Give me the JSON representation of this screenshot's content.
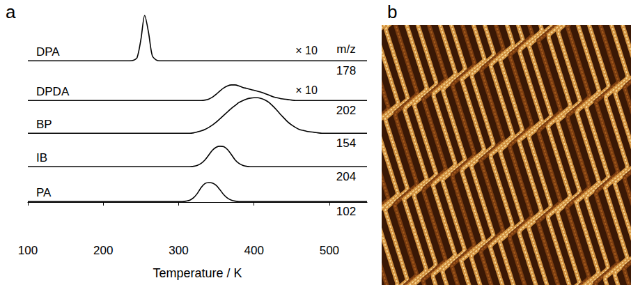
{
  "chart_data": {
    "type": "line",
    "panel_letter": "a",
    "xlabel": "Temperature / K",
    "column_title": "m/z",
    "xlim": [
      100,
      550
    ],
    "xticks": [
      100,
      200,
      300,
      400,
      500
    ],
    "ylim": [
      0,
      1
    ],
    "tick_labels": "x",
    "grid": false,
    "x": [
      100,
      105,
      110,
      115,
      120,
      125,
      130,
      135,
      140,
      145,
      150,
      155,
      160,
      165,
      170,
      175,
      180,
      185,
      190,
      195,
      200,
      205,
      210,
      215,
      220,
      225,
      230,
      235,
      240,
      245,
      250,
      255,
      260,
      265,
      270,
      275,
      280,
      285,
      290,
      295,
      300,
      305,
      310,
      315,
      320,
      325,
      330,
      335,
      340,
      345,
      350,
      355,
      360,
      365,
      370,
      375,
      380,
      385,
      390,
      395,
      400,
      405,
      410,
      415,
      420,
      425,
      430,
      435,
      440,
      445,
      450,
      455,
      460,
      465,
      470,
      475,
      480,
      485,
      490,
      495,
      500,
      505,
      510,
      515,
      520,
      525,
      530,
      535,
      540,
      545,
      550
    ],
    "series": [
      {
        "name": "DPA",
        "color": "#000000",
        "mz": 178,
        "scale_label": "× 10",
        "values": [
          0.01,
          0.01,
          0.01,
          0.01,
          0.01,
          0.01,
          0.01,
          0.01,
          0.01,
          0.01,
          0.01,
          0.01,
          0.01,
          0.01,
          0.01,
          0.01,
          0.01,
          0.01,
          0.01,
          0.01,
          0.01,
          0.01,
          0.01,
          0.01,
          0.01,
          0.01,
          0.01,
          0.01,
          0.02,
          0.08,
          0.45,
          0.94,
          0.6,
          0.12,
          0.03,
          0.01,
          0.01,
          0.01,
          0.01,
          0.01,
          0.01,
          0.01,
          0.01,
          0.01,
          0.01,
          0.01,
          0.01,
          0.01,
          0.01,
          0.01,
          0.01,
          0.01,
          0.01,
          0.01,
          0.01,
          0.01,
          0.01,
          0.01,
          0.01,
          0.01,
          0.01,
          0.01,
          0.01,
          0.01,
          0.01,
          0.01,
          0.01,
          0.01,
          0.01,
          0.01,
          0.01,
          0.01,
          0.01,
          0.01,
          0.01,
          0.01,
          0.01,
          0.01,
          0.01,
          0.01,
          0.01,
          0.01,
          0.01,
          0.01,
          0.01,
          0.01,
          0.01,
          0.01,
          0.01,
          0.01,
          0.01
        ]
      },
      {
        "name": "DPDA",
        "color": "#000000",
        "mz": 202,
        "scale_label": "× 10",
        "values": [
          0.01,
          0.01,
          0.01,
          0.01,
          0.01,
          0.01,
          0.01,
          0.01,
          0.01,
          0.01,
          0.01,
          0.01,
          0.01,
          0.01,
          0.01,
          0.01,
          0.01,
          0.01,
          0.01,
          0.01,
          0.01,
          0.01,
          0.01,
          0.01,
          0.01,
          0.01,
          0.01,
          0.01,
          0.01,
          0.01,
          0.01,
          0.01,
          0.01,
          0.01,
          0.01,
          0.01,
          0.01,
          0.01,
          0.01,
          0.01,
          0.01,
          0.01,
          0.01,
          0.01,
          0.01,
          0.01,
          0.01,
          0.02,
          0.04,
          0.08,
          0.14,
          0.21,
          0.27,
          0.31,
          0.33,
          0.33,
          0.31,
          0.28,
          0.26,
          0.24,
          0.22,
          0.2,
          0.18,
          0.15,
          0.12,
          0.09,
          0.07,
          0.05,
          0.04,
          0.03,
          0.02,
          0.01,
          0.01,
          0.01,
          0.01,
          0.01,
          0.01,
          0.01,
          0.01,
          0.01,
          0.01,
          0.01,
          0.01,
          0.01,
          0.01,
          0.01,
          0.01,
          0.01,
          0.01,
          0.01,
          0.01
        ]
      },
      {
        "name": "BP",
        "color": "#000000",
        "mz": 154,
        "values": [
          0.01,
          0.01,
          0.01,
          0.01,
          0.01,
          0.01,
          0.01,
          0.01,
          0.01,
          0.01,
          0.01,
          0.01,
          0.01,
          0.01,
          0.01,
          0.01,
          0.01,
          0.01,
          0.01,
          0.01,
          0.01,
          0.01,
          0.01,
          0.01,
          0.01,
          0.01,
          0.01,
          0.01,
          0.01,
          0.01,
          0.01,
          0.01,
          0.01,
          0.01,
          0.01,
          0.01,
          0.01,
          0.01,
          0.01,
          0.01,
          0.01,
          0.01,
          0.01,
          0.01,
          0.02,
          0.04,
          0.06,
          0.09,
          0.13,
          0.18,
          0.24,
          0.31,
          0.38,
          0.45,
          0.52,
          0.58,
          0.64,
          0.68,
          0.71,
          0.73,
          0.74,
          0.74,
          0.72,
          0.69,
          0.64,
          0.57,
          0.49,
          0.4,
          0.32,
          0.24,
          0.18,
          0.13,
          0.09,
          0.07,
          0.05,
          0.04,
          0.03,
          0.02,
          0.01,
          0.01,
          0.01,
          0.01,
          0.01,
          0.01,
          0.01,
          0.01,
          0.01,
          0.01,
          0.01,
          0.01,
          0.01
        ]
      },
      {
        "name": "IB",
        "color": "#000000",
        "mz": 204,
        "values": [
          0.01,
          0.01,
          0.01,
          0.01,
          0.01,
          0.01,
          0.01,
          0.01,
          0.01,
          0.01,
          0.01,
          0.01,
          0.01,
          0.01,
          0.01,
          0.01,
          0.01,
          0.01,
          0.01,
          0.01,
          0.01,
          0.01,
          0.01,
          0.01,
          0.01,
          0.01,
          0.01,
          0.01,
          0.01,
          0.01,
          0.01,
          0.01,
          0.01,
          0.01,
          0.01,
          0.01,
          0.01,
          0.01,
          0.01,
          0.01,
          0.01,
          0.01,
          0.01,
          0.01,
          0.02,
          0.04,
          0.08,
          0.15,
          0.25,
          0.35,
          0.41,
          0.43,
          0.42,
          0.36,
          0.26,
          0.15,
          0.08,
          0.04,
          0.02,
          0.01,
          0.01,
          0.01,
          0.01,
          0.01,
          0.01,
          0.01,
          0.01,
          0.01,
          0.01,
          0.01,
          0.01,
          0.01,
          0.01,
          0.01,
          0.01,
          0.01,
          0.01,
          0.01,
          0.01,
          0.01,
          0.01,
          0.01,
          0.01,
          0.01,
          0.01,
          0.01,
          0.01,
          0.01,
          0.01,
          0.01,
          0.01
        ]
      },
      {
        "name": "PA",
        "color": "#000000",
        "mz": 102,
        "values": [
          0.01,
          0.01,
          0.01,
          0.01,
          0.01,
          0.01,
          0.01,
          0.01,
          0.01,
          0.01,
          0.01,
          0.01,
          0.01,
          0.01,
          0.01,
          0.01,
          0.01,
          0.01,
          0.01,
          0.01,
          0.01,
          0.01,
          0.01,
          0.01,
          0.01,
          0.01,
          0.01,
          0.01,
          0.01,
          0.01,
          0.01,
          0.01,
          0.01,
          0.01,
          0.01,
          0.01,
          0.01,
          0.01,
          0.01,
          0.01,
          0.01,
          0.01,
          0.02,
          0.04,
          0.09,
          0.18,
          0.3,
          0.38,
          0.4,
          0.39,
          0.34,
          0.25,
          0.15,
          0.08,
          0.04,
          0.02,
          0.01,
          0.01,
          0.01,
          0.01,
          0.01,
          0.01,
          0.01,
          0.01,
          0.01,
          0.01,
          0.01,
          0.01,
          0.01,
          0.01,
          0.01,
          0.01,
          0.01,
          0.01,
          0.01,
          0.01,
          0.01,
          0.01,
          0.01,
          0.01,
          0.01,
          0.01,
          0.01,
          0.01,
          0.01,
          0.01,
          0.01,
          0.01,
          0.01,
          0.01,
          0.01
        ]
      }
    ]
  },
  "image_panel": {
    "panel_letter": "b"
  }
}
